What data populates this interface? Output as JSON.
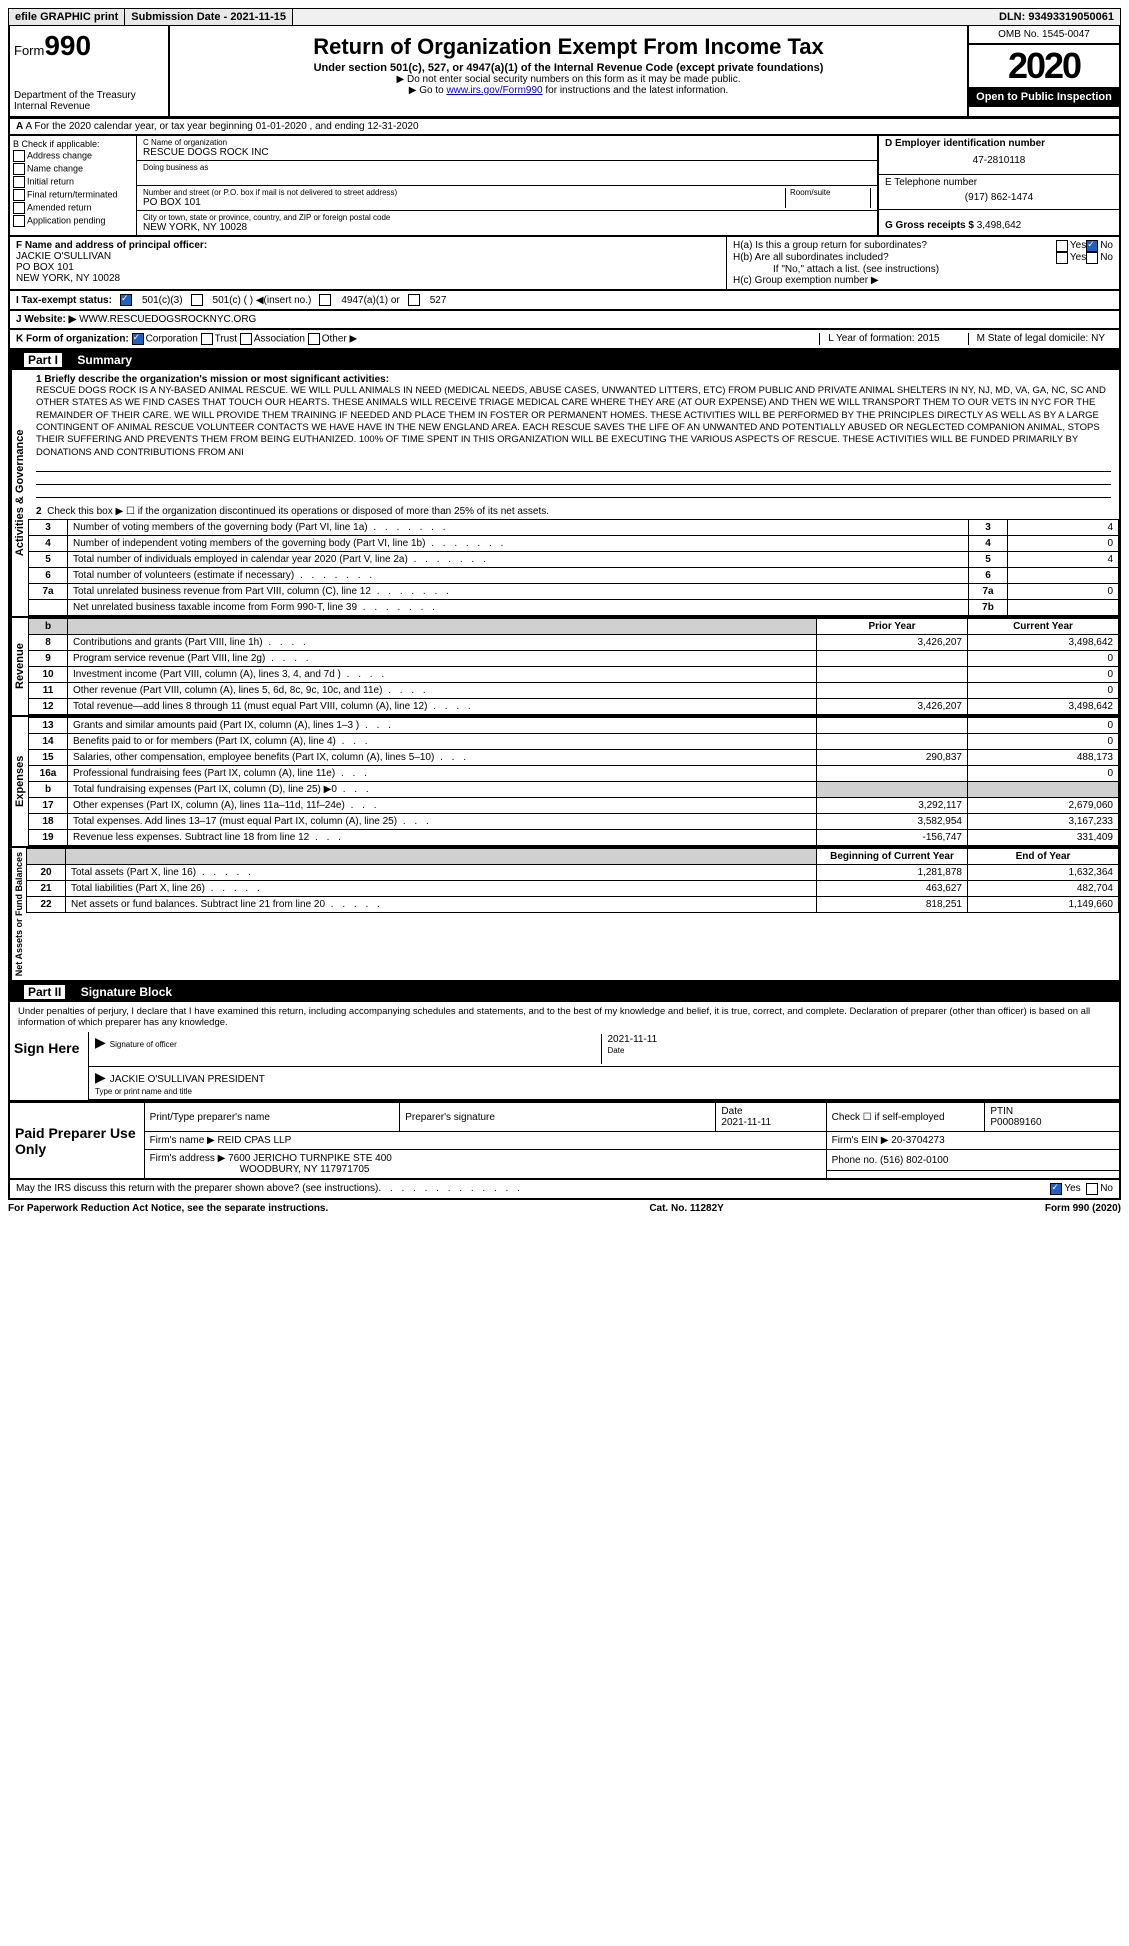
{
  "topbar": {
    "efile": "efile GRAPHIC print",
    "submission_label": "Submission Date - 2021-11-15",
    "dln": "DLN: 93493319050061"
  },
  "header": {
    "form_prefix": "Form",
    "form_num": "990",
    "dept": "Department of the Treasury\nInternal Revenue",
    "title": "Return of Organization Exempt From Income Tax",
    "subtitle": "Under section 501(c), 527, or 4947(a)(1) of the Internal Revenue Code (except private foundations)",
    "note1": "▶ Do not enter social security numbers on this form as it may be made public.",
    "note2_pre": "▶ Go to ",
    "note2_link": "www.irs.gov/Form990",
    "note2_post": " for instructions and the latest information.",
    "omb": "OMB No. 1545-0047",
    "year": "2020",
    "inspection": "Open to Public Inspection"
  },
  "rowA": "A For the 2020 calendar year, or tax year beginning 01-01-2020    , and ending 12-31-2020",
  "boxB": {
    "title": "B Check if applicable:",
    "items": [
      "Address change",
      "Name change",
      "Initial return",
      "Final return/terminated",
      "Amended return",
      "Application pending"
    ]
  },
  "boxC": {
    "name_lbl": "C Name of organization",
    "name": "RESCUE DOGS ROCK INC",
    "dba_lbl": "Doing business as",
    "dba": "",
    "addr_lbl": "Number and street (or P.O. box if mail is not delivered to street address)",
    "addr": "PO BOX 101",
    "room_lbl": "Room/suite",
    "city_lbl": "City or town, state or province, country, and ZIP or foreign postal code",
    "city": "NEW YORK, NY  10028"
  },
  "boxD": {
    "lbl": "D Employer identification number",
    "val": "47-2810118"
  },
  "boxE": {
    "lbl": "E Telephone number",
    "val": "(917) 862-1474"
  },
  "boxG": {
    "lbl": "G Gross receipts $",
    "val": "3,498,642"
  },
  "boxF": {
    "lbl": "F  Name and address of principal officer:",
    "name": "JACKIE O'SULLIVAN",
    "addr1": "PO BOX 101",
    "addr2": "NEW YORK, NY  10028"
  },
  "boxH": {
    "a": "H(a)  Is this a group return for subordinates?",
    "b": "H(b)  Are all subordinates included?",
    "note": "If \"No,\" attach a list. (see instructions)",
    "c": "H(c)  Group exemption number ▶",
    "yes": "Yes",
    "no": "No"
  },
  "taxI": {
    "lbl": "I     Tax-exempt status:",
    "opts": [
      "501(c)(3)",
      "501(c) (  ) ◀(insert no.)",
      "4947(a)(1) or",
      "527"
    ]
  },
  "boxJ": {
    "lbl": "J    Website: ▶",
    "val": "WWW.RESCUEDOGSROCKNYC.ORG"
  },
  "boxK": {
    "lbl": "K Form of organization:",
    "opts": [
      "Corporation",
      "Trust",
      "Association",
      "Other ▶"
    ],
    "L": "L Year of formation: 2015",
    "M": "M State of legal domicile: NY"
  },
  "part1_hdr": "Part I",
  "part1_title": "Summary",
  "mission": {
    "q1": "1   Briefly describe the organization's mission or most significant activities:",
    "text": "RESCUE DOGS ROCK IS A NY-BASED ANIMAL RESCUE. WE WILL PULL ANIMALS IN NEED (MEDICAL NEEDS, ABUSE CASES, UNWANTED LITTERS, ETC) FROM PUBLIC AND PRIVATE ANIMAL SHELTERS IN NY, NJ, MD, VA, GA, NC, SC AND OTHER STATES AS WE FIND CASES THAT TOUCH OUR HEARTS. THESE ANIMALS WILL RECEIVE TRIAGE MEDICAL CARE WHERE THEY ARE (AT OUR EXPENSE) AND THEN WE WILL TRANSPORT THEM TO OUR VETS IN NYC FOR THE REMAINDER OF THEIR CARE. WE WILL PROVIDE THEM TRAINING IF NEEDED AND PLACE THEM IN FOSTER OR PERMANENT HOMES. THESE ACTIVITIES WILL BE PERFORMED BY THE PRINCIPLES DIRECTLY AS WELL AS BY A LARGE CONTINGENT OF ANIMAL RESCUE VOLUNTEER CONTACTS WE HAVE HAVE IN THE NEW ENGLAND AREA. EACH RESCUE SAVES THE LIFE OF AN UNWANTED AND POTENTIALLY ABUSED OR NEGLECTED COMPANION ANIMAL, STOPS THEIR SUFFERING AND PREVENTS THEM FROM BEING EUTHANIZED. 100% OF TIME SPENT IN THIS ORGANIZATION WILL BE EXECUTING THE VARIOUS ASPECTS OF RESCUE. THESE ACTIVITIES WILL BE FUNDED PRIMARILY BY DONATIONS AND CONTRIBUTIONS FROM ANI"
  },
  "activities": {
    "q2": "Check this box ▶ ☐  if the organization discontinued its operations or disposed of more than 25% of its net assets.",
    "rows": [
      {
        "n": "3",
        "label": "Number of voting members of the governing body (Part VI, line 1a)",
        "box": "3",
        "val": "4"
      },
      {
        "n": "4",
        "label": "Number of independent voting members of the governing body (Part VI, line 1b)",
        "box": "4",
        "val": "0"
      },
      {
        "n": "5",
        "label": "Total number of individuals employed in calendar year 2020 (Part V, line 2a)",
        "box": "5",
        "val": "4"
      },
      {
        "n": "6",
        "label": "Total number of volunteers (estimate if necessary)",
        "box": "6",
        "val": ""
      },
      {
        "n": "7a",
        "label": "Total unrelated business revenue from Part VIII, column (C), line 12",
        "box": "7a",
        "val": "0"
      },
      {
        "n": "",
        "label": "Net unrelated business taxable income from Form 990-T, line 39",
        "box": "7b",
        "val": ""
      }
    ]
  },
  "rev_hdr": {
    "prior": "Prior Year",
    "current": "Current Year"
  },
  "revenue": [
    {
      "n": "8",
      "label": "Contributions and grants (Part VIII, line 1h)",
      "p": "3,426,207",
      "c": "3,498,642"
    },
    {
      "n": "9",
      "label": "Program service revenue (Part VIII, line 2g)",
      "p": "",
      "c": "0"
    },
    {
      "n": "10",
      "label": "Investment income (Part VIII, column (A), lines 3, 4, and 7d )",
      "p": "",
      "c": "0"
    },
    {
      "n": "11",
      "label": "Other revenue (Part VIII, column (A), lines 5, 6d, 8c, 9c, 10c, and 11e)",
      "p": "",
      "c": "0"
    },
    {
      "n": "12",
      "label": "Total revenue—add lines 8 through 11 (must equal Part VIII, column (A), line 12)",
      "p": "3,426,207",
      "c": "3,498,642"
    }
  ],
  "expenses": [
    {
      "n": "13",
      "label": "Grants and similar amounts paid (Part IX, column (A), lines 1–3 )",
      "p": "",
      "c": "0"
    },
    {
      "n": "14",
      "label": "Benefits paid to or for members (Part IX, column (A), line 4)",
      "p": "",
      "c": "0"
    },
    {
      "n": "15",
      "label": "Salaries, other compensation, employee benefits (Part IX, column (A), lines 5–10)",
      "p": "290,837",
      "c": "488,173"
    },
    {
      "n": "16a",
      "label": "Professional fundraising fees (Part IX, column (A), line 11e)",
      "p": "",
      "c": "0"
    },
    {
      "n": "b",
      "label": "Total fundraising expenses (Part IX, column (D), line 25) ▶0",
      "p": "grey",
      "c": "grey"
    },
    {
      "n": "17",
      "label": "Other expenses (Part IX, column (A), lines 11a–11d, 11f–24e)",
      "p": "3,292,117",
      "c": "2,679,060"
    },
    {
      "n": "18",
      "label": "Total expenses. Add lines 13–17 (must equal Part IX, column (A), line 25)",
      "p": "3,582,954",
      "c": "3,167,233"
    },
    {
      "n": "19",
      "label": "Revenue less expenses. Subtract line 18 from line 12",
      "p": "-156,747",
      "c": "331,409"
    }
  ],
  "net_hdr": {
    "begin": "Beginning of Current Year",
    "end": "End of Year"
  },
  "netassets": [
    {
      "n": "20",
      "label": "Total assets (Part X, line 16)",
      "p": "1,281,878",
      "c": "1,632,364"
    },
    {
      "n": "21",
      "label": "Total liabilities (Part X, line 26)",
      "p": "463,627",
      "c": "482,704"
    },
    {
      "n": "22",
      "label": "Net assets or fund balances. Subtract line 21 from line 20",
      "p": "818,251",
      "c": "1,149,660"
    }
  ],
  "vlabels": {
    "act": "Activities & Governance",
    "rev": "Revenue",
    "exp": "Expenses",
    "net": "Net Assets or Fund Balances"
  },
  "part2_hdr": "Part II",
  "part2_title": "Signature Block",
  "sig_intro": "Under penalties of perjury, I declare that I have examined this return, including accompanying schedules and statements, and to the best of my knowledge and belief, it is true, correct, and complete. Declaration of preparer (other than officer) is based on all information of which preparer has any knowledge.",
  "sign": {
    "here": "Sign Here",
    "officer_lbl": "Signature of officer",
    "date_lbl": "Date",
    "date": "2021-11-11",
    "name": "JACKIE O'SULLIVAN  PRESIDENT",
    "name_lbl": "Type or print name and title"
  },
  "paid": {
    "title": "Paid Preparer Use Only",
    "cols": [
      "Print/Type preparer's name",
      "Preparer's signature",
      "Date",
      "",
      "PTIN"
    ],
    "date": "2021-11-11",
    "check_lbl": "Check ☐ if self-employed",
    "ptin": "P00089160",
    "firm_name_lbl": "Firm's name     ▶",
    "firm_name": "REID CPAS LLP",
    "firm_ein_lbl": "Firm's EIN ▶",
    "firm_ein": "20-3704273",
    "firm_addr_lbl": "Firm's address ▶",
    "firm_addr1": "7600 JERICHO TURNPIKE STE 400",
    "firm_addr2": "WOODBURY, NY  117971705",
    "phone_lbl": "Phone no.",
    "phone": "(516) 802-0100"
  },
  "discuss": "May the IRS discuss this return with the preparer shown above? (see instructions)",
  "footer": {
    "left": "For Paperwork Reduction Act Notice, see the separate instructions.",
    "mid": "Cat. No. 11282Y",
    "right": "Form 990 (2020)"
  }
}
